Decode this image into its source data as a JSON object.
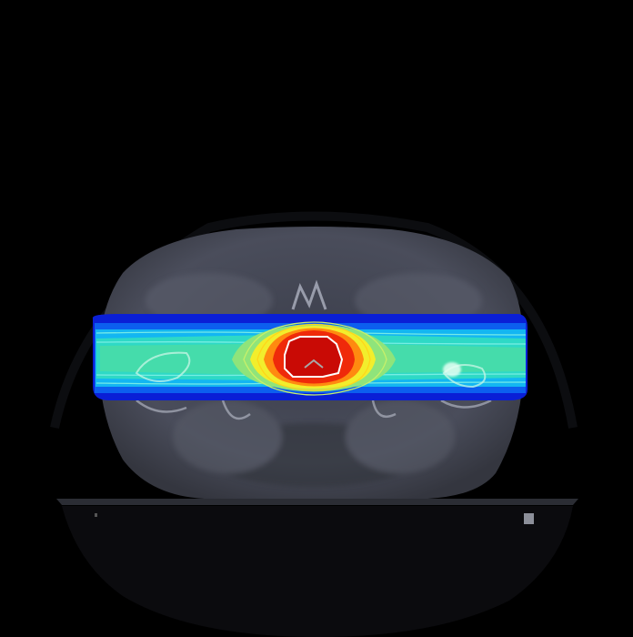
{
  "image": {
    "modality": "CT",
    "view": "axial",
    "overlay": "dose-colorwash",
    "background_color": "#000000",
    "dose_colors": [
      "#0a1fd6",
      "#0c63ef",
      "#13b6f2",
      "#2ee6e0",
      "#55e6b5",
      "#a8ea6c",
      "#f5f02a",
      "#ff8a10",
      "#ef2a0a",
      "#cc0b06",
      "#ffffff"
    ]
  }
}
